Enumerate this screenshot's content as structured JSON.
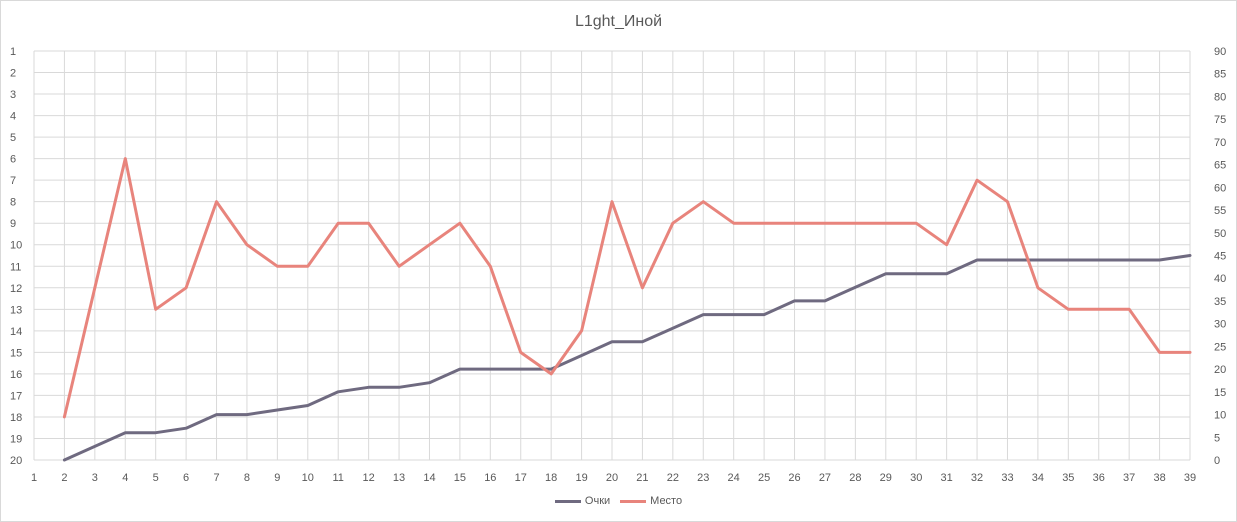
{
  "chart_data": {
    "type": "line",
    "title": "L1ght_Иной",
    "x": [
      1,
      2,
      3,
      4,
      5,
      6,
      7,
      8,
      9,
      10,
      11,
      12,
      13,
      14,
      15,
      16,
      17,
      18,
      19,
      20,
      21,
      22,
      23,
      24,
      25,
      26,
      27,
      28,
      29,
      30,
      31,
      32,
      33,
      34,
      35,
      36,
      37,
      38,
      39
    ],
    "x_tick_labels": [
      "1",
      "2",
      "3",
      "4",
      "5",
      "6",
      "7",
      "8",
      "9",
      "10",
      "11",
      "12",
      "13",
      "14",
      "15",
      "16",
      "17",
      "18",
      "19",
      "20",
      "21",
      "22",
      "23",
      "24",
      "25",
      "26",
      "27",
      "28",
      "29",
      "30",
      "31",
      "32",
      "33",
      "34",
      "35",
      "36",
      "37",
      "38",
      "39"
    ],
    "y_left": {
      "range": [
        1,
        20
      ],
      "reversed": true,
      "tick_labels": [
        "1",
        "2",
        "3",
        "4",
        "5",
        "6",
        "7",
        "8",
        "9",
        "10",
        "11",
        "12",
        "13",
        "14",
        "15",
        "16",
        "17",
        "18",
        "19",
        "20"
      ]
    },
    "y_right": {
      "range": [
        0,
        90
      ],
      "step": 5,
      "tick_labels": [
        "0",
        "5",
        "10",
        "15",
        "20",
        "25",
        "30",
        "35",
        "40",
        "45",
        "50",
        "55",
        "60",
        "65",
        "70",
        "75",
        "80",
        "85",
        "90"
      ]
    },
    "grid": true,
    "legend_position": "bottom",
    "series": [
      {
        "name": "Очки",
        "axis": "right",
        "color": "#6f6a80",
        "x": [
          2,
          3,
          4,
          5,
          6,
          7,
          8,
          9,
          10,
          11,
          12,
          13,
          14,
          15,
          16,
          17,
          18,
          19,
          20,
          21,
          22,
          23,
          24,
          25,
          26,
          27,
          28,
          29,
          30,
          31,
          32,
          33,
          34,
          35,
          36,
          37,
          38,
          39
        ],
        "values": [
          0,
          3,
          6,
          6,
          7,
          10,
          10,
          11,
          12,
          15,
          16,
          16,
          17,
          20,
          20,
          20,
          20,
          23,
          26,
          26,
          29,
          32,
          32,
          32,
          35,
          35,
          38,
          41,
          41,
          41,
          44,
          44,
          44,
          44,
          44,
          44,
          44,
          45
        ]
      },
      {
        "name": "Место",
        "axis": "left",
        "color": "#e8847c",
        "x": [
          2,
          4,
          5,
          6,
          7,
          8,
          9,
          10,
          11,
          12,
          13,
          14,
          15,
          16,
          17,
          18,
          19,
          20,
          21,
          22,
          23,
          24,
          25,
          26,
          27,
          28,
          29,
          30,
          31,
          32,
          33,
          34,
          35,
          36,
          37,
          38,
          39
        ],
        "values": [
          18,
          6,
          13,
          12,
          8,
          10,
          11,
          11,
          9,
          9,
          11,
          10,
          9,
          11,
          15,
          16,
          14,
          8,
          12,
          9,
          8,
          9,
          9,
          9,
          9,
          9,
          9,
          9,
          10,
          7,
          8,
          12,
          13,
          13,
          13,
          15,
          15
        ]
      }
    ]
  }
}
